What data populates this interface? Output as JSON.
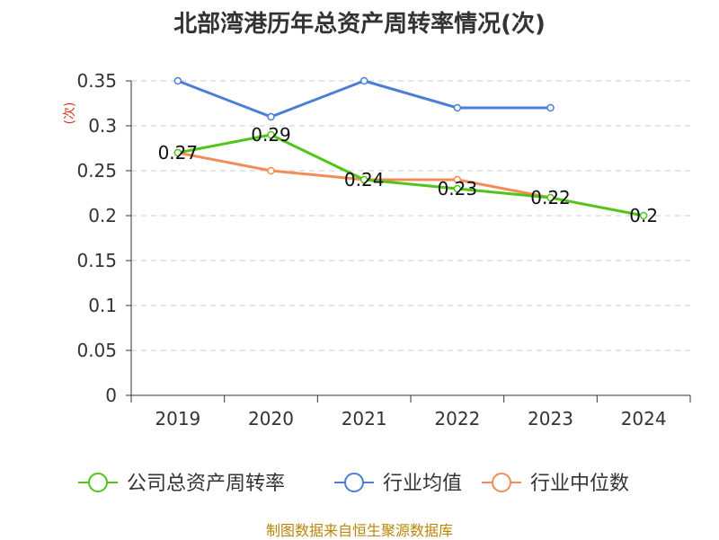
{
  "chart_data": {
    "type": "line",
    "title": "北部湾港历年总资产周转率情况(次)",
    "ylabel": "(次)",
    "xlabel": "",
    "categories": [
      "2019",
      "2020",
      "2021",
      "2022",
      "2023",
      "2024"
    ],
    "ylim": [
      0,
      0.35
    ],
    "yticks": [
      "0",
      "0.05",
      "0.1",
      "0.15",
      "0.2",
      "0.25",
      "0.3",
      "0.35"
    ],
    "grid": true,
    "legend_position": "bottom",
    "series": [
      {
        "name": "公司总资产周转率",
        "color": "#52c41a",
        "values": [
          0.27,
          0.29,
          0.24,
          0.23,
          0.22,
          0.2
        ],
        "labels": [
          "0.27",
          "0.29",
          "0.24",
          "0.23",
          "0.22",
          "0.2"
        ]
      },
      {
        "name": "行业均值",
        "color": "#4a7fd6",
        "values": [
          0.35,
          0.31,
          0.35,
          0.32,
          0.32,
          null
        ]
      },
      {
        "name": "行业中位数",
        "color": "#f48c5a",
        "values": [
          0.27,
          0.25,
          0.24,
          0.24,
          0.22,
          null
        ]
      }
    ]
  },
  "source": "制图数据来自恒生聚源数据库"
}
